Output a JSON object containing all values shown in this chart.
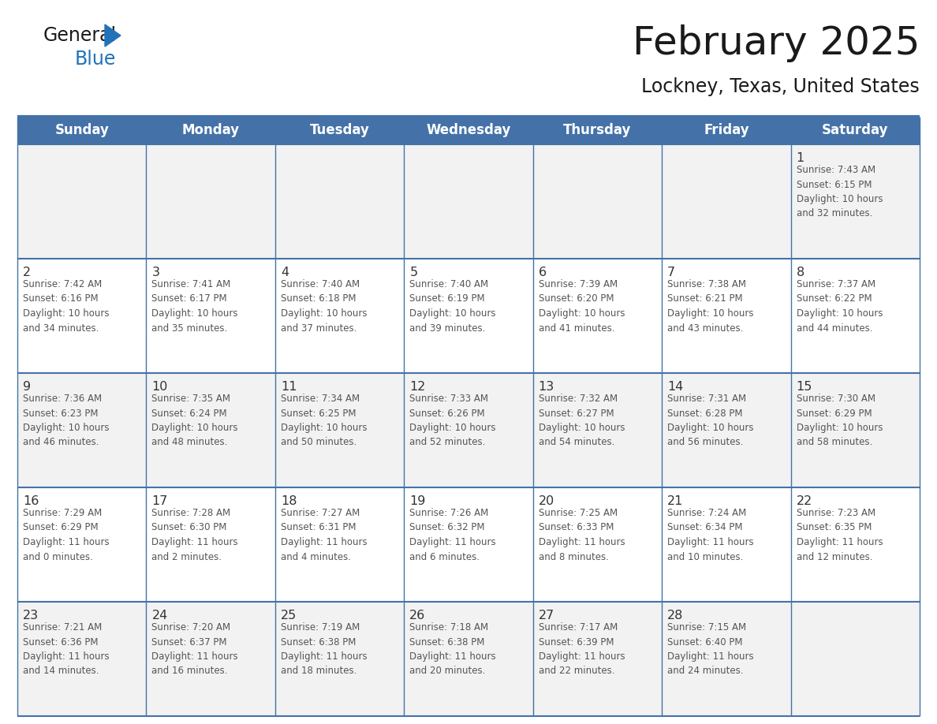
{
  "title": "February 2025",
  "subtitle": "Lockney, Texas, United States",
  "header_color": "#4472a8",
  "header_text_color": "#ffffff",
  "days_of_week": [
    "Sunday",
    "Monday",
    "Tuesday",
    "Wednesday",
    "Thursday",
    "Friday",
    "Saturday"
  ],
  "week_bg_colors": [
    "#f2f2f2",
    "#ffffff",
    "#f2f2f2",
    "#ffffff",
    "#f2f2f2"
  ],
  "cell_border_color": "#4472a8",
  "day_number_color": "#333333",
  "info_text_color": "#555555",
  "title_color": "#1a1a1a",
  "subtitle_color": "#1a1a1a",
  "logo_text_color": "#1a1a1a",
  "logo_blue_color": "#2272b8",
  "logo_triangle_color": "#2272b8",
  "calendar": [
    [
      {
        "day": "",
        "info": ""
      },
      {
        "day": "",
        "info": ""
      },
      {
        "day": "",
        "info": ""
      },
      {
        "day": "",
        "info": ""
      },
      {
        "day": "",
        "info": ""
      },
      {
        "day": "",
        "info": ""
      },
      {
        "day": "1",
        "info": "Sunrise: 7:43 AM\nSunset: 6:15 PM\nDaylight: 10 hours\nand 32 minutes."
      }
    ],
    [
      {
        "day": "2",
        "info": "Sunrise: 7:42 AM\nSunset: 6:16 PM\nDaylight: 10 hours\nand 34 minutes."
      },
      {
        "day": "3",
        "info": "Sunrise: 7:41 AM\nSunset: 6:17 PM\nDaylight: 10 hours\nand 35 minutes."
      },
      {
        "day": "4",
        "info": "Sunrise: 7:40 AM\nSunset: 6:18 PM\nDaylight: 10 hours\nand 37 minutes."
      },
      {
        "day": "5",
        "info": "Sunrise: 7:40 AM\nSunset: 6:19 PM\nDaylight: 10 hours\nand 39 minutes."
      },
      {
        "day": "6",
        "info": "Sunrise: 7:39 AM\nSunset: 6:20 PM\nDaylight: 10 hours\nand 41 minutes."
      },
      {
        "day": "7",
        "info": "Sunrise: 7:38 AM\nSunset: 6:21 PM\nDaylight: 10 hours\nand 43 minutes."
      },
      {
        "day": "8",
        "info": "Sunrise: 7:37 AM\nSunset: 6:22 PM\nDaylight: 10 hours\nand 44 minutes."
      }
    ],
    [
      {
        "day": "9",
        "info": "Sunrise: 7:36 AM\nSunset: 6:23 PM\nDaylight: 10 hours\nand 46 minutes."
      },
      {
        "day": "10",
        "info": "Sunrise: 7:35 AM\nSunset: 6:24 PM\nDaylight: 10 hours\nand 48 minutes."
      },
      {
        "day": "11",
        "info": "Sunrise: 7:34 AM\nSunset: 6:25 PM\nDaylight: 10 hours\nand 50 minutes."
      },
      {
        "day": "12",
        "info": "Sunrise: 7:33 AM\nSunset: 6:26 PM\nDaylight: 10 hours\nand 52 minutes."
      },
      {
        "day": "13",
        "info": "Sunrise: 7:32 AM\nSunset: 6:27 PM\nDaylight: 10 hours\nand 54 minutes."
      },
      {
        "day": "14",
        "info": "Sunrise: 7:31 AM\nSunset: 6:28 PM\nDaylight: 10 hours\nand 56 minutes."
      },
      {
        "day": "15",
        "info": "Sunrise: 7:30 AM\nSunset: 6:29 PM\nDaylight: 10 hours\nand 58 minutes."
      }
    ],
    [
      {
        "day": "16",
        "info": "Sunrise: 7:29 AM\nSunset: 6:29 PM\nDaylight: 11 hours\nand 0 minutes."
      },
      {
        "day": "17",
        "info": "Sunrise: 7:28 AM\nSunset: 6:30 PM\nDaylight: 11 hours\nand 2 minutes."
      },
      {
        "day": "18",
        "info": "Sunrise: 7:27 AM\nSunset: 6:31 PM\nDaylight: 11 hours\nand 4 minutes."
      },
      {
        "day": "19",
        "info": "Sunrise: 7:26 AM\nSunset: 6:32 PM\nDaylight: 11 hours\nand 6 minutes."
      },
      {
        "day": "20",
        "info": "Sunrise: 7:25 AM\nSunset: 6:33 PM\nDaylight: 11 hours\nand 8 minutes."
      },
      {
        "day": "21",
        "info": "Sunrise: 7:24 AM\nSunset: 6:34 PM\nDaylight: 11 hours\nand 10 minutes."
      },
      {
        "day": "22",
        "info": "Sunrise: 7:23 AM\nSunset: 6:35 PM\nDaylight: 11 hours\nand 12 minutes."
      }
    ],
    [
      {
        "day": "23",
        "info": "Sunrise: 7:21 AM\nSunset: 6:36 PM\nDaylight: 11 hours\nand 14 minutes."
      },
      {
        "day": "24",
        "info": "Sunrise: 7:20 AM\nSunset: 6:37 PM\nDaylight: 11 hours\nand 16 minutes."
      },
      {
        "day": "25",
        "info": "Sunrise: 7:19 AM\nSunset: 6:38 PM\nDaylight: 11 hours\nand 18 minutes."
      },
      {
        "day": "26",
        "info": "Sunrise: 7:18 AM\nSunset: 6:38 PM\nDaylight: 11 hours\nand 20 minutes."
      },
      {
        "day": "27",
        "info": "Sunrise: 7:17 AM\nSunset: 6:39 PM\nDaylight: 11 hours\nand 22 minutes."
      },
      {
        "day": "28",
        "info": "Sunrise: 7:15 AM\nSunset: 6:40 PM\nDaylight: 11 hours\nand 24 minutes."
      },
      {
        "day": "",
        "info": ""
      }
    ]
  ]
}
